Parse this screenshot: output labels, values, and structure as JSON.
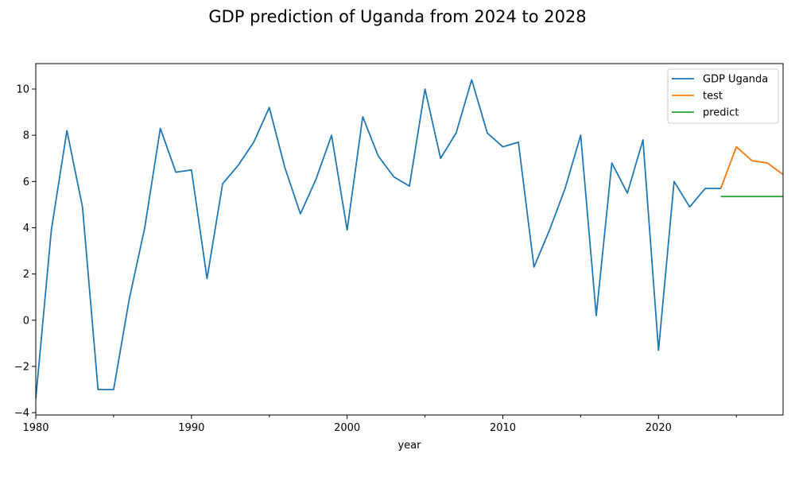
{
  "chart_data": {
    "type": "line",
    "title": "GDP prediction of Uganda from 2024 to 2028",
    "xlabel": "year",
    "ylabel": "",
    "xlim": [
      1980,
      2028
    ],
    "ylim": [
      -4.1,
      11.1
    ],
    "x_major_ticks": [
      1980,
      1990,
      2000,
      2010,
      2020
    ],
    "x_minor_ticks": [
      1985,
      1995,
      2005,
      2015,
      2025
    ],
    "y_ticks": [
      -4,
      -2,
      0,
      2,
      4,
      6,
      8,
      10
    ],
    "legend_position": "top-right",
    "series": [
      {
        "name": "GDP Uganda",
        "color": "#1f77b4",
        "points": [
          [
            1980,
            -3.4
          ],
          [
            1981,
            3.9
          ],
          [
            1982,
            8.2
          ],
          [
            1983,
            4.9
          ],
          [
            1984,
            -3.0
          ],
          [
            1985,
            -3.0
          ],
          [
            1986,
            0.9
          ],
          [
            1987,
            4.0
          ],
          [
            1988,
            8.3
          ],
          [
            1989,
            6.4
          ],
          [
            1990,
            6.5
          ],
          [
            1991,
            1.8
          ],
          [
            1992,
            5.9
          ],
          [
            1993,
            6.7
          ],
          [
            1994,
            7.7
          ],
          [
            1995,
            9.2
          ],
          [
            1996,
            6.6
          ],
          [
            1997,
            4.6
          ],
          [
            1998,
            6.1
          ],
          [
            1999,
            8.0
          ],
          [
            2000,
            3.9
          ],
          [
            2001,
            8.8
          ],
          [
            2002,
            7.1
          ],
          [
            2003,
            6.2
          ],
          [
            2004,
            5.8
          ],
          [
            2005,
            10.0
          ],
          [
            2006,
            7.0
          ],
          [
            2007,
            8.1
          ],
          [
            2008,
            10.4
          ],
          [
            2009,
            8.1
          ],
          [
            2010,
            7.5
          ],
          [
            2011,
            7.7
          ],
          [
            2012,
            2.3
          ],
          [
            2013,
            3.9
          ],
          [
            2014,
            5.7
          ],
          [
            2015,
            8.0
          ],
          [
            2016,
            0.2
          ],
          [
            2017,
            6.8
          ],
          [
            2018,
            5.5
          ],
          [
            2019,
            7.8
          ],
          [
            2020,
            -1.3
          ],
          [
            2021,
            6.0
          ],
          [
            2022,
            4.9
          ],
          [
            2023,
            5.7
          ],
          [
            2024,
            5.7
          ],
          [
            2025,
            7.5
          ],
          [
            2026,
            6.9
          ],
          [
            2027,
            6.8
          ],
          [
            2028,
            6.3
          ]
        ]
      },
      {
        "name": "test",
        "color": "#ff7f0e",
        "points": [
          [
            2024,
            5.7
          ],
          [
            2025,
            7.5
          ],
          [
            2026,
            6.9
          ],
          [
            2027,
            6.8
          ],
          [
            2028,
            6.3
          ]
        ]
      },
      {
        "name": "predict",
        "color": "#2ca02c",
        "points": [
          [
            2024,
            5.35
          ],
          [
            2025,
            5.35
          ],
          [
            2026,
            5.35
          ],
          [
            2027,
            5.35
          ],
          [
            2028,
            5.35
          ]
        ]
      }
    ]
  }
}
